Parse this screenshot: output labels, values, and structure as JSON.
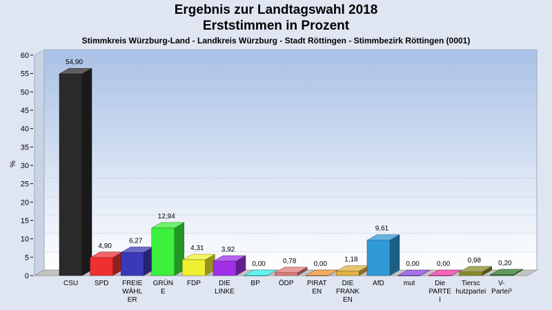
{
  "header": {
    "title_line1": "Ergebnis zur Landtagswahl 2018",
    "title_line2": "Erststimmen in Prozent",
    "subtitle": "Stimmkreis Würzburg-Land - Landkreis Würzburg - Stadt Röttingen - Stimmbezirk Röttingen (0001)"
  },
  "chart_data": {
    "type": "bar",
    "title": "Ergebnis zur Landtagswahl 2018 / Erststimmen in Prozent",
    "subtitle": "Stimmkreis Würzburg-Land - Landkreis Würzburg - Stadt Röttingen - Stimmbezirk Röttingen (0001)",
    "xlabel": "",
    "ylabel": "%",
    "ylim": [
      0,
      60
    ],
    "yticks": [
      0,
      5,
      10,
      15,
      20,
      25,
      30,
      35,
      40,
      45,
      50,
      55,
      60
    ],
    "grid": true,
    "categories": [
      [
        "CSU"
      ],
      [
        "SPD"
      ],
      [
        "FREIE",
        "WÄHL",
        "ER"
      ],
      [
        "GRÜN",
        "E"
      ],
      [
        "FDP"
      ],
      [
        "DIE",
        "LINKE"
      ],
      [
        "BP"
      ],
      [
        "ÖDP"
      ],
      [
        "PIRAT",
        "EN"
      ],
      [
        "DIE",
        "FRANK",
        "EN"
      ],
      [
        "AfD"
      ],
      [
        "mut"
      ],
      [
        "Die",
        "PARTE",
        "I"
      ],
      [
        "Tiersc",
        "hutzpartei"
      ],
      [
        "V-",
        "Partei³"
      ]
    ],
    "values": [
      54.9,
      4.9,
      6.27,
      12.94,
      4.31,
      3.92,
      0.0,
      0.78,
      0.0,
      1.18,
      9.61,
      0.0,
      0.0,
      0.98,
      0.2
    ],
    "value_labels": [
      "54,90",
      "4,90",
      "6,27",
      "12,94",
      "4,31",
      "3,92",
      "0,00",
      "0,78",
      "0,00",
      "1,18",
      "9,61",
      "0,00",
      "0,00",
      "0,98",
      "0,20"
    ],
    "colors": [
      "#2a2a2a",
      "#ef3030",
      "#3a3ab8",
      "#3cf03c",
      "#f0f030",
      "#a030e8",
      "#30f0f0",
      "#e07a7a",
      "#f09030",
      "#e0b040",
      "#2f9ad6",
      "#8a40e0",
      "#f030a0",
      "#8a8a2a",
      "#2a7a2a"
    ]
  }
}
